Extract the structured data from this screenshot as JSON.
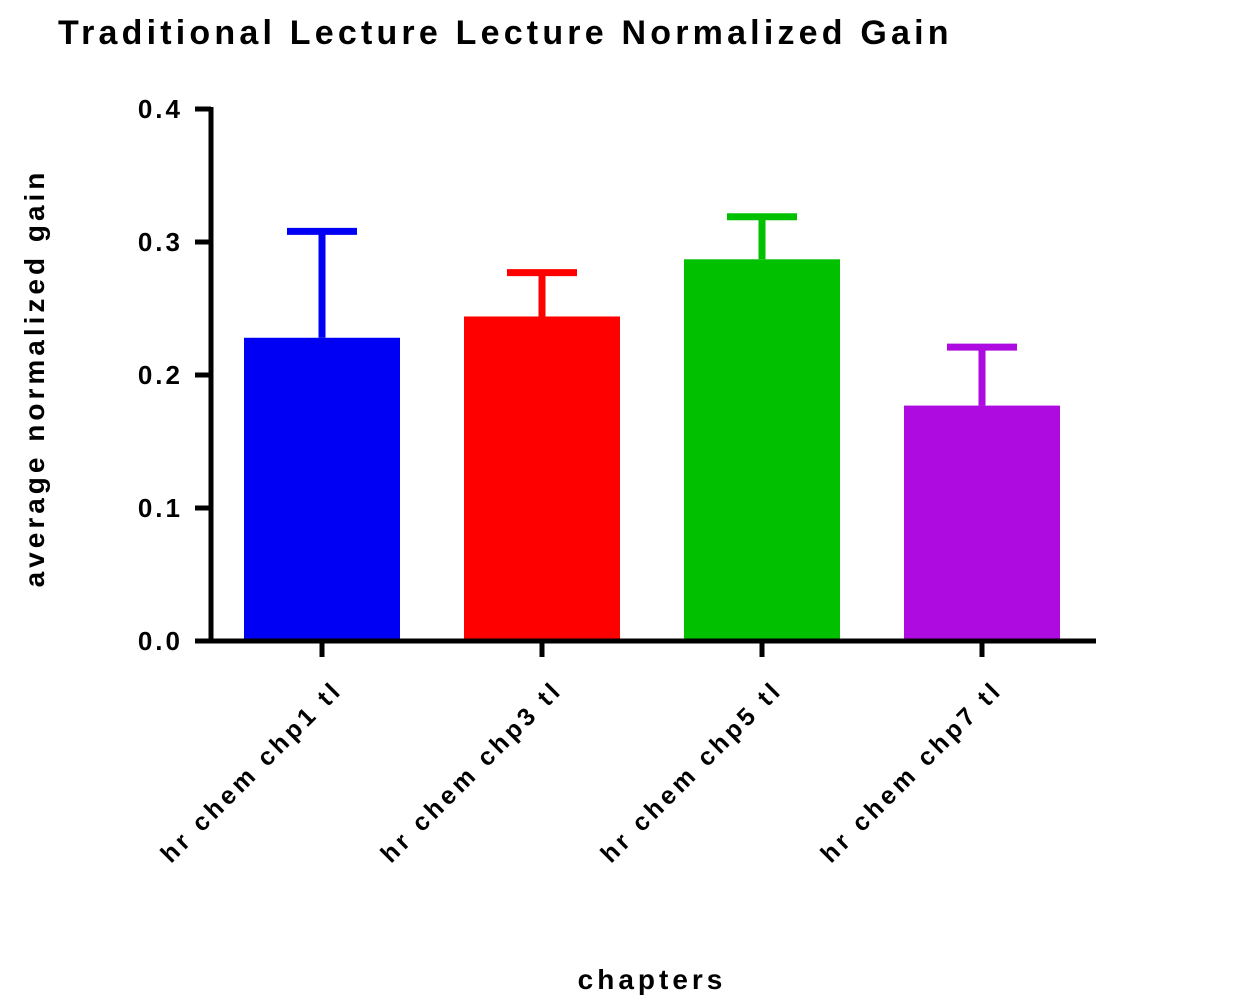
{
  "chart_data": {
    "type": "bar",
    "title": "Traditional Lecture Lecture Normalized Gain",
    "xlabel": "chapters",
    "ylabel": "average normalized gain",
    "ylim": [
      0,
      0.4
    ],
    "yticks": [
      "0.0",
      "0.1",
      "0.2",
      "0.3",
      "0.4"
    ],
    "ytick_values": [
      0,
      0.1,
      0.2,
      0.3,
      0.4
    ],
    "categories": [
      "hr chem chp1 tl",
      "hr chem chp3 tl",
      "hr chem chp5 tl",
      "hr chem chp7 tl"
    ],
    "values": [
      0.228,
      0.244,
      0.287,
      0.177
    ],
    "error_upper": [
      0.08,
      0.033,
      0.032,
      0.044
    ],
    "colors": [
      "#0000f5",
      "#ff0000",
      "#00c000",
      "#ad0be0"
    ],
    "grid": false,
    "legend": "none"
  }
}
